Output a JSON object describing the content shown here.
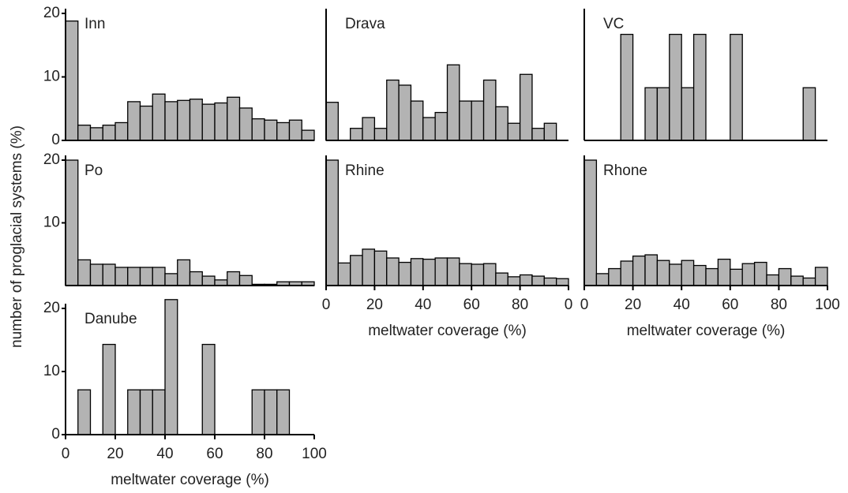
{
  "ylabel": "number of proglacial systems (%)",
  "chart_data": [
    {
      "type": "histogram",
      "title": "Inn",
      "bins": [
        0,
        5,
        10,
        15,
        20,
        25,
        30,
        35,
        40,
        45,
        50,
        55,
        60,
        65,
        70,
        75,
        80,
        85,
        90,
        95,
        100
      ],
      "values": [
        18.8,
        2.4,
        2.0,
        2.4,
        2.8,
        6.1,
        5.4,
        7.3,
        6.1,
        6.3,
        6.5,
        5.7,
        5.9,
        6.8,
        5.1,
        3.4,
        3.2,
        2.8,
        3.2,
        1.6
      ],
      "color": "#b3b3b3",
      "xlim": [
        0,
        100
      ],
      "ylim": [
        0,
        20
      ],
      "yticks": [
        0,
        10,
        20
      ]
    },
    {
      "type": "histogram",
      "title": "Drava",
      "bins": [
        0,
        5,
        10,
        15,
        20,
        25,
        30,
        35,
        40,
        45,
        50,
        55,
        60,
        65,
        70,
        75,
        80,
        85,
        90,
        95,
        100
      ],
      "values": [
        6.0,
        0,
        1.9,
        3.6,
        1.9,
        9.5,
        8.7,
        6.2,
        3.6,
        4.4,
        11.9,
        6.2,
        6.2,
        9.5,
        5.3,
        2.7,
        10.4,
        1.9,
        2.7,
        0
      ],
      "color": "#b3b3b3",
      "xlim": [
        0,
        100
      ],
      "ylim": [
        0,
        20
      ]
    },
    {
      "type": "histogram",
      "title": "VC",
      "bins": [
        0,
        5,
        10,
        15,
        20,
        25,
        30,
        35,
        40,
        45,
        50,
        55,
        60,
        65,
        70,
        75,
        80,
        85,
        90,
        95,
        100
      ],
      "values": [
        0,
        0,
        0,
        16.7,
        0,
        8.3,
        8.3,
        16.7,
        8.3,
        16.7,
        0,
        0,
        16.7,
        0,
        0,
        0,
        0,
        0,
        8.3,
        0
      ],
      "color": "#b3b3b3",
      "xlim": [
        0,
        100
      ],
      "ylim": [
        0,
        20
      ]
    },
    {
      "type": "histogram",
      "title": "Po",
      "bins": [
        0,
        5,
        10,
        15,
        20,
        25,
        30,
        35,
        40,
        45,
        50,
        55,
        60,
        65,
        70,
        75,
        80,
        85,
        90,
        95,
        100
      ],
      "values": [
        20,
        4.1,
        3.4,
        3.4,
        2.9,
        2.9,
        2.9,
        2.9,
        1.9,
        4.1,
        2.2,
        1.5,
        0.9,
        2.2,
        1.6,
        0.2,
        0.2,
        0.6,
        0.6,
        0.6
      ],
      "color": "#b3b3b3",
      "xlim": [
        0,
        100
      ],
      "ylim": [
        0,
        20
      ],
      "yticks": [
        10,
        20
      ]
    },
    {
      "type": "histogram",
      "title": "Rhine",
      "bins": [
        0,
        5,
        10,
        15,
        20,
        25,
        30,
        35,
        40,
        45,
        50,
        55,
        60,
        65,
        70,
        75,
        80,
        85,
        90,
        95,
        100
      ],
      "values": [
        20,
        3.6,
        4.8,
        5.8,
        5.5,
        4.4,
        3.7,
        4.3,
        4.2,
        4.4,
        4.4,
        3.5,
        3.4,
        3.5,
        2.0,
        1.4,
        1.7,
        1.5,
        1.2,
        1.1
      ],
      "color": "#b3b3b3",
      "xlim": [
        0,
        100
      ],
      "ylim": [
        0,
        20
      ],
      "xticks": [
        0,
        20,
        40,
        60,
        80,
        {
          "value": 100,
          "label": "0"
        }
      ],
      "xlabel": "meltwater coverage (%)"
    },
    {
      "type": "histogram",
      "title": "Rhone",
      "bins": [
        0,
        5,
        10,
        15,
        20,
        25,
        30,
        35,
        40,
        45,
        50,
        55,
        60,
        65,
        70,
        75,
        80,
        85,
        90,
        95,
        100
      ],
      "values": [
        20,
        1.9,
        2.7,
        3.9,
        4.7,
        4.9,
        4.0,
        3.4,
        4.0,
        3.2,
        2.7,
        4.2,
        2.6,
        3.5,
        3.7,
        1.7,
        2.7,
        1.5,
        1.2,
        2.9
      ],
      "color": "#b3b3b3",
      "xlim": [
        0,
        100
      ],
      "ylim": [
        0,
        20
      ],
      "xticks": [
        0,
        20,
        40,
        60,
        80,
        100
      ],
      "xlabel": "meltwater coverage (%)"
    },
    {
      "type": "histogram",
      "title": "Danube",
      "bins": [
        0,
        5,
        10,
        15,
        20,
        25,
        30,
        35,
        40,
        45,
        50,
        55,
        60,
        65,
        70,
        75,
        80,
        85,
        90,
        95,
        100
      ],
      "values": [
        0,
        7.1,
        0,
        14.3,
        0,
        7.1,
        7.1,
        7.1,
        21.4,
        0,
        0,
        14.3,
        0,
        0,
        0,
        7.1,
        7.1,
        7.1,
        0,
        0
      ],
      "color": "#b3b3b3",
      "xlim": [
        0,
        100
      ],
      "ylim": [
        0,
        20
      ],
      "yticks": [
        0,
        10,
        20
      ],
      "xticks": [
        0,
        20,
        40,
        60,
        80,
        100
      ],
      "xlabel": "meltwater coverage (%)"
    }
  ]
}
